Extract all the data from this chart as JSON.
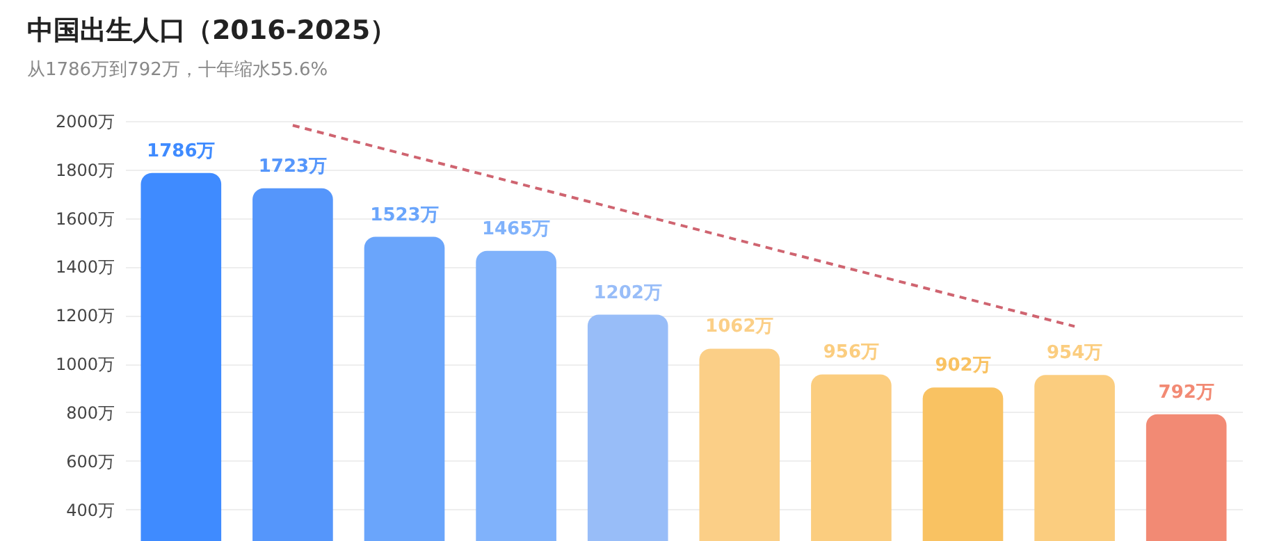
{
  "chart_data": {
    "type": "bar",
    "title": "中国出生人口（2016-2025）",
    "subtitle": "从1786万到792万，十年缩水55.6%",
    "categories": [
      null,
      null,
      null,
      null,
      null,
      null,
      null,
      null,
      null,
      null
    ],
    "series": [
      {
        "values": [
          1786,
          1723,
          1523,
          1465,
          1202,
          1062,
          956,
          902,
          954,
          792
        ],
        "colors": [
          "#3f8bff",
          "#5596fb",
          "#6aa5fb",
          "#80b2fb",
          "#98bdf8",
          "#fbcf87",
          "#fbcd7f",
          "#f9c262",
          "#fbcd7f",
          "#f28a74"
        ],
        "value_labels": [
          "1786万",
          "1723万",
          "1523万",
          "1465万",
          "1202万",
          "1062万",
          "956万",
          "902万",
          "954万",
          "792万"
        ]
      },
      {
        "type": "line",
        "values": [
          null,
          1982,
          1863,
          1745,
          1627,
          1508,
          1390,
          1272,
          1154,
          null
        ],
        "color": "#cf6470",
        "line_style": "dashed"
      }
    ],
    "ylim": [
      270,
      2000
    ],
    "yticks": [
      {
        "value": 400,
        "label": "400万"
      },
      {
        "value": 600,
        "label": "600万"
      },
      {
        "value": 800,
        "label": "800万"
      },
      {
        "value": 1000,
        "label": "1000万"
      },
      {
        "value": 1200,
        "label": "1200万"
      },
      {
        "value": 1400,
        "label": "1400万"
      },
      {
        "value": 1600,
        "label": "1600万"
      },
      {
        "value": 1800,
        "label": "1800万"
      },
      {
        "value": 2000,
        "label": "2000万"
      }
    ],
    "grid": "y"
  }
}
